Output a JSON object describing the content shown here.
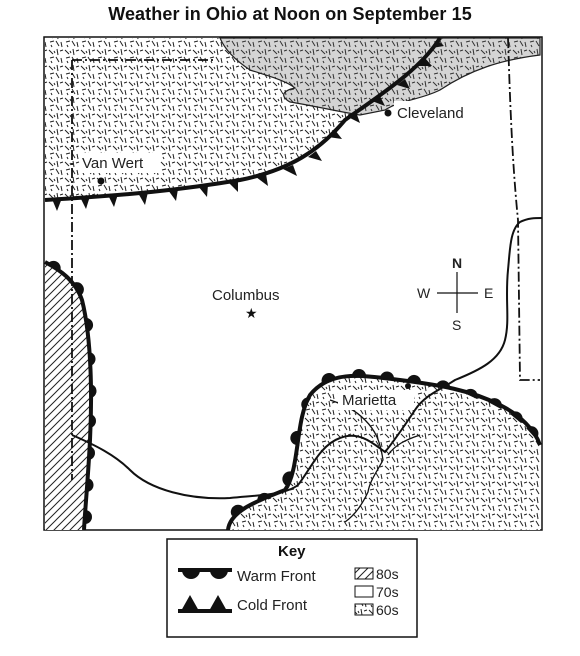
{
  "title": "Weather in Ohio at Noon on September 15",
  "cities": {
    "cleveland": "Cleveland",
    "van_wert": "Van Wert",
    "columbus": "Columbus",
    "marietta": "Marietta"
  },
  "compass": {
    "north": "N",
    "south": "S",
    "east": "E",
    "west": "W"
  },
  "key": {
    "title": "Key",
    "warm_front": "Warm Front",
    "cold_front": "Cold Front",
    "temp_80": "80s",
    "temp_70": "70s",
    "temp_60": "60s"
  }
}
